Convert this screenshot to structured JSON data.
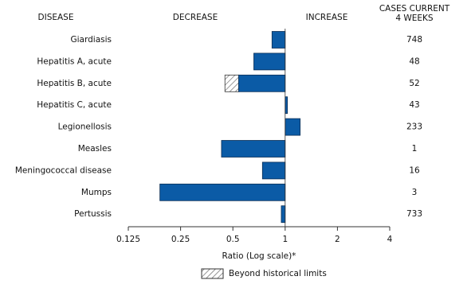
{
  "chart_data": {
    "type": "hbar",
    "headers": {
      "disease": "DISEASE",
      "decrease": "DECREASE",
      "increase": "INCREASE",
      "cases": [
        "CASES CURRENT",
        "4 WEEKS"
      ]
    },
    "categories": [
      "Giardiasis",
      "Hepatitis A, acute",
      "Hepatitis B, acute",
      "Hepatitis C, acute",
      "Legionellosis",
      "Measles",
      "Meningococcal disease",
      "Mumps",
      "Pertussis"
    ],
    "values": [
      0.84,
      0.66,
      0.45,
      1.03,
      1.22,
      0.43,
      0.74,
      0.19,
      0.95
    ],
    "historical_limits": [
      null,
      null,
      0.54,
      null,
      null,
      null,
      null,
      null,
      null
    ],
    "cases": [
      748,
      48,
      52,
      43,
      233,
      1,
      16,
      3,
      733
    ],
    "color": "#0b5ba6",
    "x_scale": "log",
    "xlim": [
      0.125,
      4
    ],
    "xticks": [
      0.125,
      0.25,
      0.5,
      1,
      2,
      4
    ],
    "xlabel": "Ratio (Log scale)*",
    "legend": "Beyond historical limits"
  }
}
